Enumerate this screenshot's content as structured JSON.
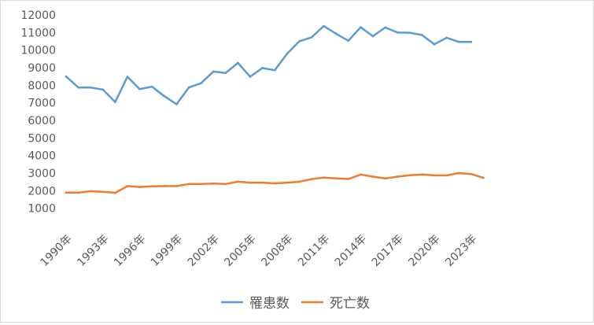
{
  "chart_data": {
    "type": "line",
    "x": [
      "1990年",
      "1991年",
      "1992年",
      "1993年",
      "1994年",
      "1995年",
      "1996年",
      "1997年",
      "1998年",
      "1999年",
      "2000年",
      "2001年",
      "2002年",
      "2003年",
      "2004年",
      "2005年",
      "2006年",
      "2007年",
      "2008年",
      "2009年",
      "2010年",
      "2011年",
      "2012年",
      "2013年",
      "2014年",
      "2015年",
      "2016年",
      "2017年",
      "2018年",
      "2019年",
      "2020年",
      "2021年",
      "2022年",
      "2023年",
      "2024年"
    ],
    "x_tick_labels": [
      "1990年",
      "1993年",
      "1996年",
      "1999年",
      "2002年",
      "2005年",
      "2008年",
      "2011年",
      "2014年",
      "2017年",
      "2020年",
      "2023年"
    ],
    "y_ticks": [
      1000,
      2000,
      3000,
      4000,
      5000,
      6000,
      7000,
      8000,
      9000,
      10000,
      11000,
      12000
    ],
    "ylim": [
      0,
      12000
    ],
    "grid": false,
    "legend_position": "bottom",
    "series": [
      {
        "name": "罹患数",
        "color": "#5b9bd5",
        "values": [
          8500,
          7870,
          7870,
          7750,
          7050,
          8480,
          7780,
          7920,
          7380,
          6920,
          7870,
          8120,
          8780,
          8700,
          9270,
          8490,
          8980,
          8850,
          9790,
          10500,
          10730,
          11370,
          10930,
          10530,
          11300,
          10790,
          11290,
          11000,
          10990,
          10860,
          10330,
          10700,
          10470,
          10470,
          null
        ]
      },
      {
        "name": "死亡数",
        "color": "#ed7d31",
        "values": [
          1890,
          1890,
          1970,
          1940,
          1880,
          2260,
          2210,
          2250,
          2260,
          2260,
          2380,
          2380,
          2410,
          2380,
          2510,
          2460,
          2460,
          2420,
          2460,
          2510,
          2660,
          2750,
          2700,
          2670,
          2920,
          2800,
          2700,
          2800,
          2880,
          2920,
          2870,
          2870,
          3000,
          2950,
          2730
        ]
      }
    ]
  }
}
